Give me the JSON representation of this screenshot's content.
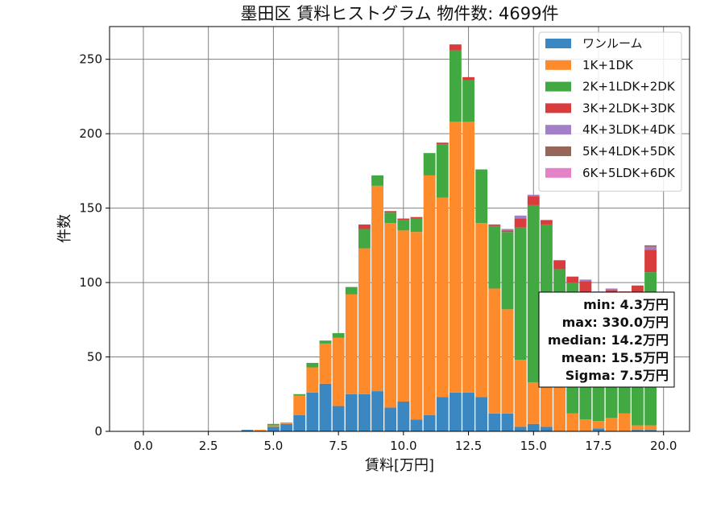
{
  "chart_data": {
    "type": "bar",
    "stacked": true,
    "title": "墨田区 賃料ヒストグラム  物件数: 4699件",
    "xlabel": "賃料[万円]",
    "ylabel": "件数",
    "xlim": [
      -1.3,
      21.0
    ],
    "ylim": [
      0,
      272
    ],
    "xticks": [
      0.0,
      2.5,
      5.0,
      7.5,
      10.0,
      12.5,
      15.0,
      17.5,
      20.0
    ],
    "xtick_labels": [
      "0.0",
      "2.5",
      "5.0",
      "7.5",
      "10.0",
      "12.5",
      "15.0",
      "17.5",
      "20.0"
    ],
    "yticks": [
      0,
      50,
      100,
      150,
      200,
      250
    ],
    "ytick_labels": [
      "0",
      "50",
      "100",
      "150",
      "200",
      "250"
    ],
    "grid": true,
    "legend_position": "top-right",
    "bin_width": 0.5,
    "x": [
      0,
      0.5,
      1,
      1.5,
      2,
      2.5,
      3,
      3.5,
      4,
      4.5,
      5,
      5.5,
      6,
      6.5,
      7,
      7.5,
      8,
      8.5,
      9,
      9.5,
      10,
      10.5,
      11,
      11.5,
      12,
      12.5,
      13,
      13.5,
      14,
      14.5,
      15,
      15.5,
      16,
      16.5,
      17,
      17.5,
      18,
      18.5,
      19,
      19.5
    ],
    "series": [
      {
        "name": "ワンルーム",
        "color": "#3a87c1",
        "values": [
          0,
          0,
          0,
          0,
          0,
          0,
          0,
          0,
          1,
          0,
          3,
          5,
          11,
          26,
          32,
          17,
          25,
          25,
          27,
          16,
          20,
          8,
          11,
          23,
          26,
          26,
          23,
          12,
          12,
          3,
          5,
          3,
          0,
          0,
          0,
          2,
          0,
          0,
          1,
          1
        ]
      },
      {
        "name": "1K+1DK",
        "color": "#fd8a2b",
        "values": [
          0,
          0,
          0,
          0,
          0,
          0,
          0,
          0,
          0,
          1,
          1,
          1,
          13,
          17,
          27,
          46,
          67,
          98,
          138,
          124,
          115,
          126,
          161,
          134,
          182,
          182,
          117,
          84,
          70,
          45,
          28,
          28,
          37,
          12,
          8,
          5,
          9,
          12,
          3,
          3
        ]
      },
      {
        "name": "2K+1LDK+2DK",
        "color": "#42a842",
        "values": [
          0,
          0,
          0,
          0,
          0,
          0,
          0,
          0,
          0,
          0,
          1,
          0,
          1,
          3,
          2,
          3,
          5,
          13,
          7,
          7,
          7,
          9,
          15,
          36,
          48,
          28,
          36,
          42,
          52,
          89,
          119,
          108,
          72,
          88,
          83,
          79,
          77,
          77,
          85,
          103
        ]
      },
      {
        "name": "3K+2LDK+3DK",
        "color": "#d83c3c",
        "values": [
          0,
          0,
          0,
          0,
          0,
          0,
          0,
          0,
          0,
          0,
          0,
          0,
          0,
          0,
          0,
          0,
          0,
          3,
          0,
          1,
          1,
          1,
          0,
          1,
          4,
          2,
          0,
          1,
          1,
          6,
          6,
          3,
          6,
          4,
          10,
          7,
          9,
          5,
          9,
          15
        ]
      },
      {
        "name": "4K+3LDK+4DK",
        "color": "#a180c8",
        "values": [
          0,
          0,
          0,
          0,
          0,
          0,
          0,
          0,
          0,
          0,
          0,
          0,
          0,
          0,
          0,
          0,
          0,
          0,
          0,
          0,
          0,
          0,
          0,
          0,
          0,
          0,
          0,
          0,
          1,
          2,
          1,
          0,
          0,
          0,
          1,
          1,
          1,
          0,
          0,
          2
        ]
      },
      {
        "name": "5K+4LDK+5DK",
        "color": "#986658",
        "values": [
          0,
          0,
          0,
          0,
          0,
          0,
          0,
          0,
          0,
          0,
          0,
          0,
          0,
          0,
          0,
          0,
          0,
          0,
          0,
          0,
          0,
          0,
          0,
          0,
          0,
          0,
          0,
          0,
          0,
          0,
          0,
          0,
          0,
          0,
          0,
          0,
          0,
          0,
          0,
          1
        ]
      },
      {
        "name": "6K+5LDK+6DK",
        "color": "#e482c8",
        "values": [
          0,
          0,
          0,
          0,
          0,
          0,
          0,
          0,
          0,
          0,
          0,
          0,
          0,
          0,
          0,
          0,
          0,
          0,
          0,
          0,
          0,
          0,
          0,
          0,
          0,
          0,
          0,
          0,
          0,
          0,
          0,
          0,
          0,
          0,
          0,
          0,
          0,
          0,
          0,
          0
        ]
      }
    ],
    "stats": [
      "min: 4.3万円",
      "max: 330.0万円",
      "median: 14.2万円",
      "mean: 15.5万円",
      "Sigma: 7.5万円"
    ]
  }
}
